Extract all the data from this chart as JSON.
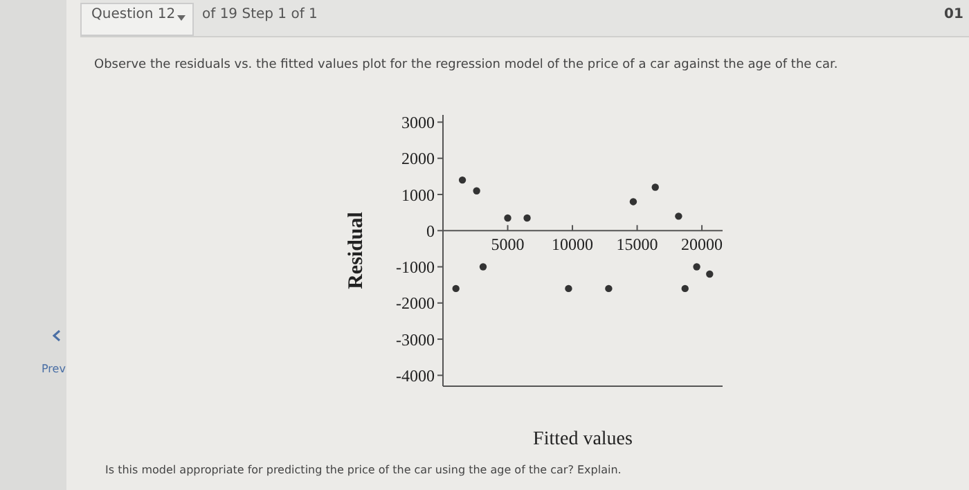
{
  "chart_data": {
    "type": "scatter",
    "title": "Observe the residuals vs. the fitted values plot for the regression model of the price of a car against the age of the car.",
    "annotations": [
      "Question 12",
      "of 19 Step 1 of 1",
      "01",
      "Prev",
      "Is this model appropriate for predicting the price of the car using the age of the car? Explain."
    ],
    "xlabel": "Fitted values",
    "ylabel": "Residual",
    "x": [
      1000,
      1500,
      2600,
      3100,
      5000,
      6500,
      9700,
      12800,
      14700,
      16400,
      18200,
      18700,
      19600,
      20600
    ],
    "series": [
      {
        "color": "#333333",
        "values": [
          -1600,
          1400,
          1100,
          -1000,
          350,
          350,
          -1600,
          -1600,
          800,
          1200,
          400,
          -1600,
          -1000,
          -1200
        ]
      }
    ],
    "xlim": [
      0,
      21600
    ],
    "ylim": [
      -4300,
      3200
    ],
    "xticks": [
      5000,
      10000,
      15000,
      20000
    ],
    "yticks": [
      -4000,
      -3000,
      -2000,
      -1000,
      0,
      1000,
      2000,
      3000
    ],
    "marker": "circle",
    "grid": false,
    "legend": false
  }
}
